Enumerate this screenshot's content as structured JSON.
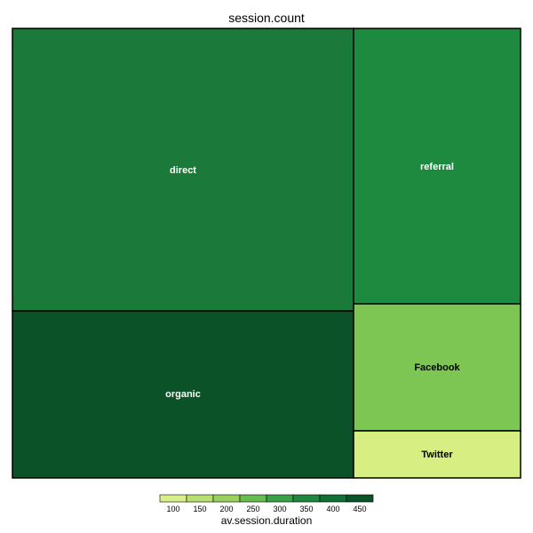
{
  "chart_data": {
    "type": "treemap",
    "title": "session.count",
    "size_variable": "session.count",
    "color_variable": "av.session.duration",
    "tiles": [
      {
        "label": "direct",
        "color": "#1b7a3a",
        "label_color": "#ffffff"
      },
      {
        "label": "organic",
        "color": "#0b5228",
        "label_color": "#ffffff"
      },
      {
        "label": "referral",
        "color": "#1e8a40",
        "label_color": "#ffffff"
      },
      {
        "label": "Facebook",
        "color": "#7ec654",
        "label_color": "#000000"
      },
      {
        "label": "Twitter",
        "color": "#d7ee82",
        "label_color": "#000000"
      }
    ],
    "legend": {
      "title": "av.session.duration",
      "ticks": [
        "100",
        "150",
        "200",
        "250",
        "300",
        "350",
        "400",
        "450"
      ],
      "colors": [
        "#d9f08a",
        "#b8e070",
        "#97d15e",
        "#68bb52",
        "#39a048",
        "#21863e",
        "#127034",
        "#0b5228"
      ]
    }
  }
}
